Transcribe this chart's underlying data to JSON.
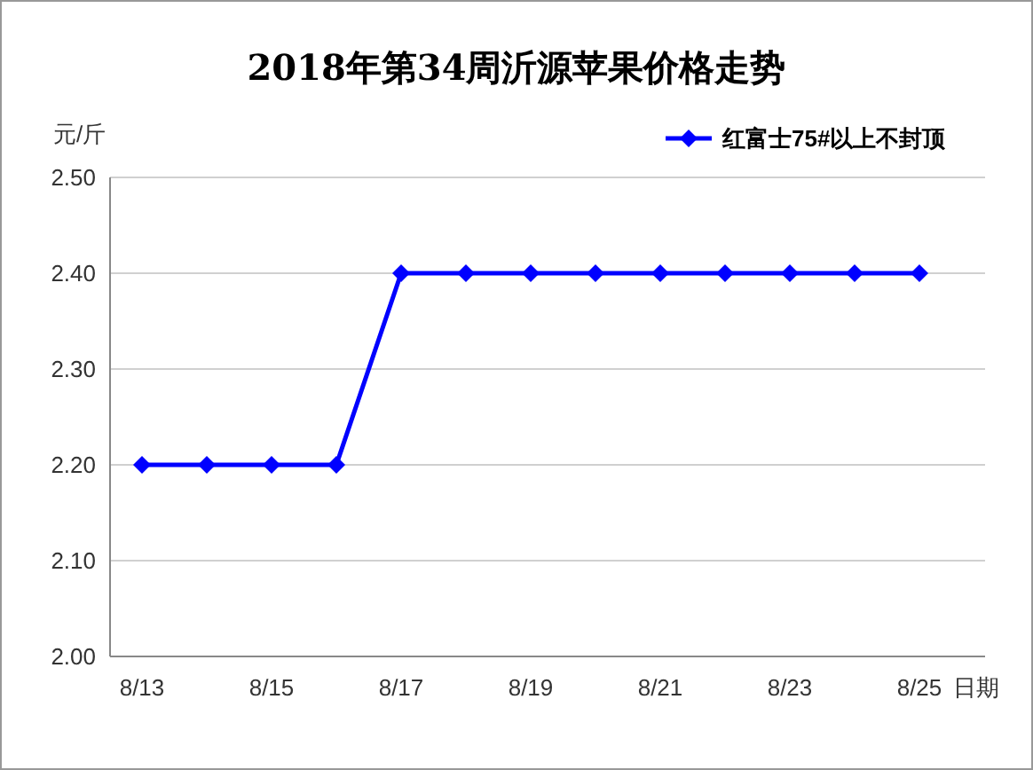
{
  "chart_data": {
    "type": "line",
    "title": "2018年第34周沂源苹果价格走势",
    "ylabel": "元/斤",
    "xlabel": "日期",
    "categories": [
      "8/13",
      null,
      "8/15",
      null,
      "8/17",
      null,
      "8/19",
      null,
      "8/21",
      null,
      "8/23",
      null,
      "8/25"
    ],
    "series": [
      {
        "name": "红富士75#以上不封顶",
        "color": "#0000ff",
        "values": [
          2.2,
          2.2,
          2.2,
          2.2,
          2.4,
          2.4,
          2.4,
          2.4,
          2.4,
          2.4,
          2.4,
          2.4,
          2.4
        ]
      }
    ],
    "ylim": [
      2.0,
      2.5
    ],
    "yticks": [
      {
        "value": 2.0,
        "label": "2.00"
      },
      {
        "value": 2.1,
        "label": "2.10"
      },
      {
        "value": 2.2,
        "label": "2.20"
      },
      {
        "value": 2.3,
        "label": "2.30"
      },
      {
        "value": 2.4,
        "label": "2.40"
      },
      {
        "value": 2.5,
        "label": "2.50"
      }
    ],
    "grid": "y",
    "legend": "top right",
    "marker": "diamond",
    "line_style": "solid"
  }
}
